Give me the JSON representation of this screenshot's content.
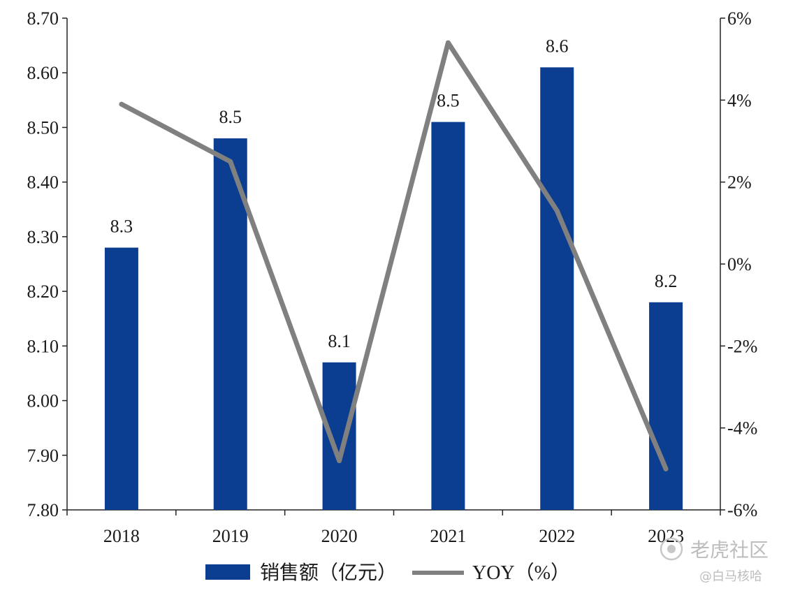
{
  "chart_data": {
    "type": "bar",
    "categories": [
      "2018",
      "2019",
      "2020",
      "2021",
      "2022",
      "2023"
    ],
    "series": [
      {
        "name": "销售额（亿元）",
        "type": "bar",
        "axis": "left",
        "color": "#0b3d91",
        "values": [
          8.28,
          8.48,
          8.07,
          8.51,
          8.61,
          8.18
        ],
        "data_labels": [
          "8.3",
          "8.5",
          "8.1",
          "8.5",
          "8.6",
          "8.2"
        ]
      },
      {
        "name": "YOY（%）",
        "type": "line",
        "axis": "right",
        "color": "#808080",
        "values": [
          3.9,
          2.5,
          -4.8,
          5.4,
          1.3,
          -5.0
        ]
      }
    ],
    "y_left": {
      "min": 7.8,
      "max": 8.7,
      "ticks": [
        7.8,
        7.9,
        8.0,
        8.1,
        8.2,
        8.3,
        8.4,
        8.5,
        8.6,
        8.7
      ],
      "tick_labels": [
        "7.80",
        "7.90",
        "8.00",
        "8.10",
        "8.20",
        "8.30",
        "8.40",
        "8.50",
        "8.60",
        "8.70"
      ]
    },
    "y_right": {
      "min": -6,
      "max": 6,
      "ticks": [
        -6,
        -4,
        -2,
        0,
        2,
        4,
        6
      ],
      "tick_labels": [
        "-6%",
        "-4%",
        "-2%",
        "0%",
        "2%",
        "4%",
        "6%"
      ]
    },
    "grid": false,
    "legend_position": "bottom-center"
  },
  "watermark": {
    "line1": "老虎社区",
    "line2": "@白马核哈"
  }
}
